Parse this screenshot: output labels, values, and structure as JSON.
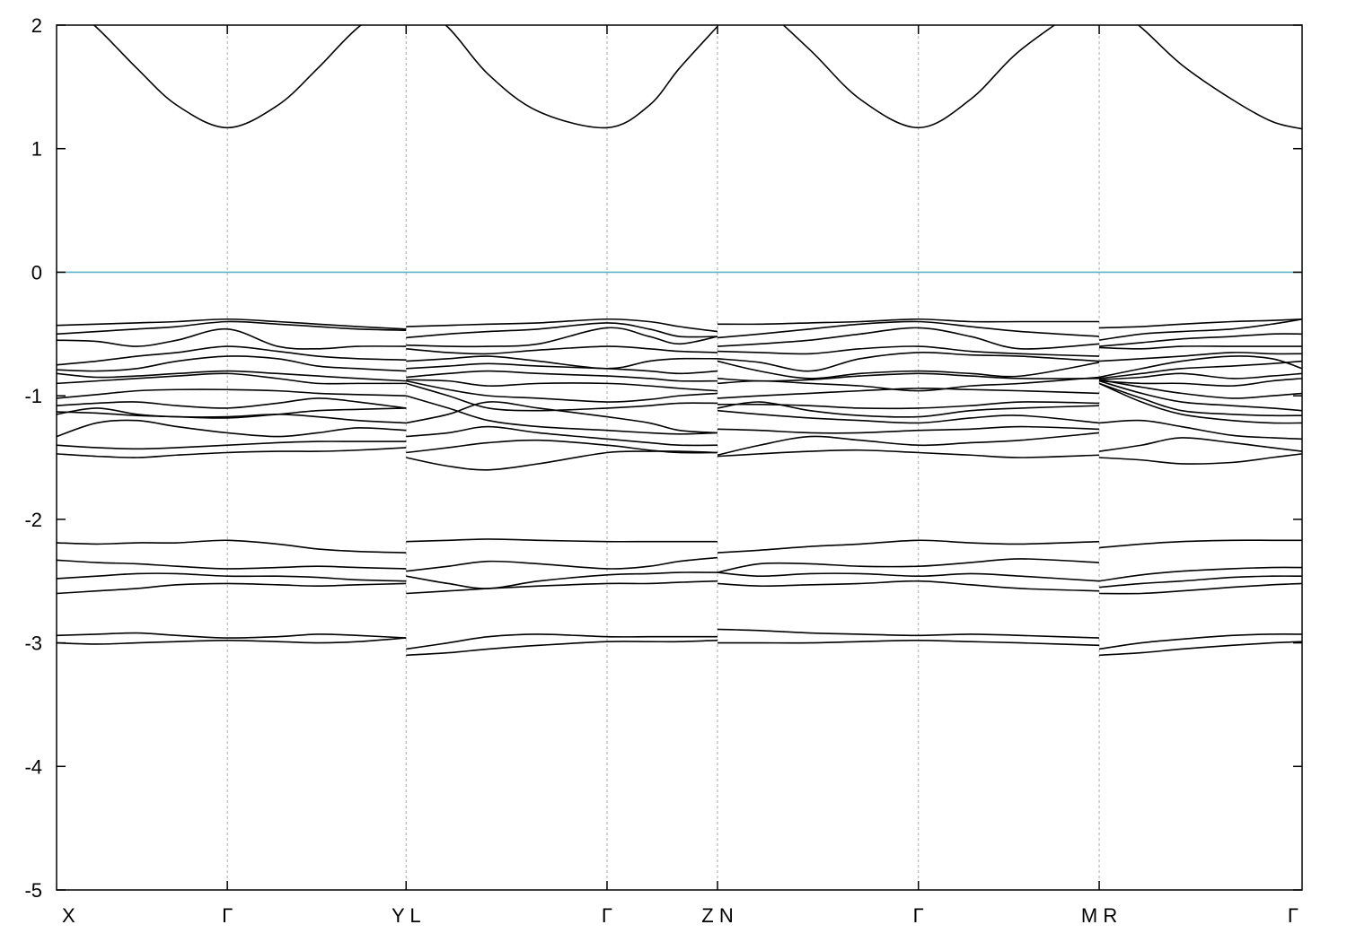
{
  "chart_data": {
    "type": "line",
    "title": "",
    "xlabel": "",
    "ylabel": "",
    "ylim": [
      -5,
      2
    ],
    "yticks": [
      2,
      1,
      0,
      -1,
      -2,
      -3,
      -4,
      -5
    ],
    "xlim": [
      0,
      6.2
    ],
    "kpoints": [
      {
        "label": "X",
        "x": 0.0
      },
      {
        "label": "Γ",
        "x": 0.85
      },
      {
        "label": "Y L",
        "x": 1.74
      },
      {
        "label": "Γ",
        "x": 2.74
      },
      {
        "label": "Z N",
        "x": 3.29
      },
      {
        "label": "Γ",
        "x": 4.29
      },
      {
        "label": "M R",
        "x": 5.19
      },
      {
        "label": "Γ",
        "x": 6.2
      }
    ],
    "fermi_level": 0,
    "fermi_color": "#5ab4c8",
    "line_color": "#000000",
    "grid_color": "#aaaaaa",
    "segments": [
      {
        "x": [
          0.0,
          0.2,
          0.4,
          0.6,
          0.85,
          1.1,
          1.3,
          1.5,
          1.74
        ],
        "bands": [
          [
            2.25,
            1.98,
            1.65,
            1.35,
            1.17,
            1.35,
            1.65,
            1.98,
            2.25
          ],
          [
            -0.43,
            -0.42,
            -0.41,
            -0.4,
            -0.38,
            -0.4,
            -0.42,
            -0.44,
            -0.46
          ],
          [
            -0.5,
            -0.48,
            -0.46,
            -0.44,
            -0.4,
            -0.42,
            -0.44,
            -0.46,
            -0.47
          ],
          [
            -0.55,
            -0.56,
            -0.6,
            -0.55,
            -0.46,
            -0.6,
            -0.62,
            -0.6,
            -0.6
          ],
          [
            -0.75,
            -0.72,
            -0.68,
            -0.65,
            -0.6,
            -0.64,
            -0.68,
            -0.7,
            -0.71
          ],
          [
            -0.79,
            -0.8,
            -0.78,
            -0.72,
            -0.68,
            -0.7,
            -0.76,
            -0.78,
            -0.8
          ],
          [
            -0.82,
            -0.85,
            -0.84,
            -0.82,
            -0.8,
            -0.82,
            -0.84,
            -0.86,
            -0.88
          ],
          [
            -0.9,
            -0.88,
            -0.86,
            -0.84,
            -0.82,
            -0.86,
            -0.9,
            -0.9,
            -0.9
          ],
          [
            -1.02,
            -0.99,
            -0.96,
            -0.95,
            -0.95,
            -0.96,
            -0.98,
            -0.99,
            -1.0
          ],
          [
            -1.08,
            -1.06,
            -1.05,
            -1.08,
            -1.1,
            -1.06,
            -1.02,
            -1.05,
            -1.1
          ],
          [
            -1.13,
            -1.14,
            -1.16,
            -1.17,
            -1.18,
            -1.15,
            -1.12,
            -1.11,
            -1.1
          ],
          [
            -1.15,
            -1.1,
            -1.15,
            -1.17,
            -1.17,
            -1.15,
            -1.17,
            -1.2,
            -1.22
          ],
          [
            -1.33,
            -1.22,
            -1.2,
            -1.25,
            -1.3,
            -1.33,
            -1.3,
            -1.26,
            -1.28
          ],
          [
            -1.4,
            -1.42,
            -1.43,
            -1.42,
            -1.4,
            -1.38,
            -1.37,
            -1.37,
            -1.37
          ],
          [
            -1.47,
            -1.49,
            -1.5,
            -1.48,
            -1.46,
            -1.45,
            -1.45,
            -1.44,
            -1.42
          ],
          [
            -2.19,
            -2.2,
            -2.19,
            -2.19,
            -2.17,
            -2.2,
            -2.24,
            -2.26,
            -2.27
          ],
          [
            -2.33,
            -2.35,
            -2.36,
            -2.38,
            -2.4,
            -2.39,
            -2.38,
            -2.39,
            -2.4
          ],
          [
            -2.48,
            -2.46,
            -2.44,
            -2.44,
            -2.46,
            -2.46,
            -2.47,
            -2.49,
            -2.5
          ],
          [
            -2.6,
            -2.58,
            -2.56,
            -2.53,
            -2.52,
            -2.53,
            -2.54,
            -2.53,
            -2.52
          ],
          [
            -2.94,
            -2.93,
            -2.92,
            -2.94,
            -2.96,
            -2.95,
            -2.93,
            -2.94,
            -2.96
          ],
          [
            -3.0,
            -3.01,
            -3.0,
            -2.99,
            -2.98,
            -2.99,
            -3.0,
            -2.99,
            -2.96
          ]
        ]
      },
      {
        "x": [
          1.74,
          1.95,
          2.15,
          2.4,
          2.74,
          2.95,
          3.1,
          3.29
        ],
        "bands": [
          [
            2.25,
            1.98,
            1.6,
            1.3,
            1.17,
            1.35,
            1.65,
            1.99
          ],
          [
            -0.44,
            -0.43,
            -0.42,
            -0.41,
            -0.38,
            -0.4,
            -0.44,
            -0.48
          ],
          [
            -0.53,
            -0.5,
            -0.48,
            -0.46,
            -0.41,
            -0.46,
            -0.52,
            -0.52
          ],
          [
            -0.59,
            -0.6,
            -0.6,
            -0.58,
            -0.45,
            -0.52,
            -0.58,
            -0.52
          ],
          [
            -0.62,
            -0.65,
            -0.66,
            -0.63,
            -0.6,
            -0.62,
            -0.64,
            -0.65
          ],
          [
            -0.72,
            -0.7,
            -0.68,
            -0.72,
            -0.78,
            -0.72,
            -0.7,
            -0.7
          ],
          [
            -0.78,
            -0.76,
            -0.74,
            -0.76,
            -0.78,
            -0.8,
            -0.82,
            -0.8
          ],
          [
            -0.85,
            -0.82,
            -0.8,
            -0.82,
            -0.84,
            -0.86,
            -0.88,
            -0.88
          ],
          [
            -0.87,
            -0.88,
            -0.92,
            -0.9,
            -0.9,
            -0.92,
            -0.94,
            -0.96
          ],
          [
            -0.88,
            -0.95,
            -1.0,
            -1.02,
            -1.05,
            -1.03,
            -1.0,
            -0.98
          ],
          [
            -0.9,
            -1.0,
            -1.1,
            -1.12,
            -1.1,
            -1.08,
            -1.06,
            -1.06
          ],
          [
            -1.22,
            -1.15,
            -1.05,
            -1.1,
            -1.17,
            -1.22,
            -1.28,
            -1.3
          ],
          [
            -1.0,
            -1.1,
            -1.2,
            -1.25,
            -1.28,
            -1.3,
            -1.31,
            -1.3
          ],
          [
            -1.33,
            -1.3,
            -1.25,
            -1.3,
            -1.35,
            -1.38,
            -1.4,
            -1.4
          ],
          [
            -1.46,
            -1.42,
            -1.38,
            -1.36,
            -1.4,
            -1.44,
            -1.46,
            -1.46
          ],
          [
            -1.5,
            -1.57,
            -1.6,
            -1.55,
            -1.46,
            -1.45,
            -1.45,
            -1.46
          ],
          [
            -2.18,
            -2.17,
            -2.16,
            -2.17,
            -2.18,
            -2.18,
            -2.18,
            -2.18
          ],
          [
            -2.42,
            -2.38,
            -2.34,
            -2.36,
            -2.4,
            -2.38,
            -2.34,
            -2.31
          ],
          [
            -2.46,
            -2.52,
            -2.56,
            -2.5,
            -2.45,
            -2.44,
            -2.43,
            -2.43
          ],
          [
            -2.6,
            -2.58,
            -2.56,
            -2.54,
            -2.52,
            -2.52,
            -2.51,
            -2.5
          ],
          [
            -3.05,
            -3.0,
            -2.95,
            -2.93,
            -2.95,
            -2.95,
            -2.95,
            -2.95
          ],
          [
            -3.1,
            -3.08,
            -3.05,
            -3.02,
            -2.99,
            -2.99,
            -2.99,
            -2.98
          ]
        ]
      },
      {
        "x": [
          3.29,
          3.5,
          3.75,
          4.0,
          4.29,
          4.55,
          4.8,
          5.19
        ],
        "bands": [
          [
            2.25,
            2.15,
            1.8,
            1.4,
            1.17,
            1.4,
            1.8,
            2.25
          ],
          [
            -0.42,
            -0.42,
            -0.41,
            -0.4,
            -0.38,
            -0.4,
            -0.4,
            -0.4
          ],
          [
            -0.53,
            -0.5,
            -0.46,
            -0.42,
            -0.4,
            -0.44,
            -0.48,
            -0.52
          ],
          [
            -0.6,
            -0.58,
            -0.55,
            -0.5,
            -0.45,
            -0.52,
            -0.62,
            -0.58
          ],
          [
            -0.64,
            -0.65,
            -0.66,
            -0.62,
            -0.6,
            -0.64,
            -0.66,
            -0.68
          ],
          [
            -0.7,
            -0.73,
            -0.8,
            -0.7,
            -0.65,
            -0.67,
            -0.68,
            -0.72
          ],
          [
            -0.72,
            -0.8,
            -0.86,
            -0.82,
            -0.8,
            -0.82,
            -0.84,
            -0.73
          ],
          [
            -0.86,
            -0.88,
            -0.87,
            -0.84,
            -0.82,
            -0.84,
            -0.86,
            -0.86
          ],
          [
            -0.9,
            -0.88,
            -0.9,
            -0.92,
            -0.96,
            -0.92,
            -0.9,
            -0.85
          ],
          [
            -1.02,
            -1.0,
            -0.98,
            -0.96,
            -0.94,
            -0.95,
            -0.96,
            -0.98
          ],
          [
            -1.07,
            -1.07,
            -1.08,
            -1.1,
            -1.1,
            -1.08,
            -1.05,
            -1.06
          ],
          [
            -1.1,
            -1.05,
            -1.12,
            -1.16,
            -1.17,
            -1.12,
            -1.1,
            -1.08
          ],
          [
            -1.12,
            -1.15,
            -1.18,
            -1.2,
            -1.22,
            -1.18,
            -1.16,
            -1.22
          ],
          [
            -1.27,
            -1.28,
            -1.3,
            -1.3,
            -1.28,
            -1.27,
            -1.25,
            -1.27
          ],
          [
            -1.48,
            -1.4,
            -1.33,
            -1.36,
            -1.4,
            -1.38,
            -1.36,
            -1.3
          ],
          [
            -1.49,
            -1.47,
            -1.45,
            -1.44,
            -1.46,
            -1.48,
            -1.5,
            -1.48
          ],
          [
            -2.27,
            -2.25,
            -2.22,
            -2.2,
            -2.17,
            -2.19,
            -2.2,
            -2.18
          ],
          [
            -2.43,
            -2.36,
            -2.36,
            -2.38,
            -2.38,
            -2.35,
            -2.32,
            -2.35
          ],
          [
            -2.43,
            -2.46,
            -2.44,
            -2.44,
            -2.46,
            -2.44,
            -2.46,
            -2.5
          ],
          [
            -2.52,
            -2.54,
            -2.53,
            -2.52,
            -2.5,
            -2.53,
            -2.56,
            -2.58
          ],
          [
            -2.89,
            -2.9,
            -2.92,
            -2.93,
            -2.94,
            -2.93,
            -2.94,
            -2.96
          ],
          [
            -3.0,
            -3.0,
            -3.0,
            -2.99,
            -2.98,
            -2.99,
            -3.0,
            -3.02
          ]
        ]
      },
      {
        "x": [
          5.19,
          5.4,
          5.6,
          5.85,
          6.05,
          6.2
        ],
        "bands": [
          [
            2.25,
            1.98,
            1.68,
            1.4,
            1.22,
            1.16
          ],
          [
            -0.45,
            -0.44,
            -0.42,
            -0.4,
            -0.39,
            -0.38
          ],
          [
            -0.55,
            -0.5,
            -0.48,
            -0.46,
            -0.42,
            -0.38
          ],
          [
            -0.6,
            -0.57,
            -0.54,
            -0.52,
            -0.5,
            -0.5
          ],
          [
            -0.61,
            -0.62,
            -0.6,
            -0.6,
            -0.6,
            -0.6
          ],
          [
            -0.72,
            -0.7,
            -0.68,
            -0.65,
            -0.66,
            -0.66
          ],
          [
            -0.85,
            -0.78,
            -0.72,
            -0.68,
            -0.7,
            -0.78
          ],
          [
            -0.86,
            -0.82,
            -0.78,
            -0.76,
            -0.74,
            -0.72
          ],
          [
            -0.87,
            -0.85,
            -0.82,
            -0.86,
            -0.84,
            -0.82
          ],
          [
            -0.88,
            -0.9,
            -0.9,
            -0.92,
            -0.88,
            -0.86
          ],
          [
            -0.87,
            -0.93,
            -0.98,
            -1.02,
            -1.0,
            -0.98
          ],
          [
            -0.88,
            -0.98,
            -1.05,
            -1.08,
            -1.1,
            -1.12
          ],
          [
            -0.9,
            -1.02,
            -1.12,
            -1.15,
            -1.16,
            -1.16
          ],
          [
            -0.9,
            -1.05,
            -1.15,
            -1.2,
            -1.22,
            -1.22
          ],
          [
            -1.22,
            -1.2,
            -1.25,
            -1.32,
            -1.34,
            -1.35
          ],
          [
            -1.45,
            -1.4,
            -1.34,
            -1.38,
            -1.42,
            -1.45
          ],
          [
            -1.5,
            -1.52,
            -1.55,
            -1.54,
            -1.5,
            -1.47
          ],
          [
            -2.23,
            -2.2,
            -2.18,
            -2.17,
            -2.17,
            -2.17
          ],
          [
            -2.5,
            -2.45,
            -2.42,
            -2.4,
            -2.39,
            -2.39
          ],
          [
            -2.55,
            -2.52,
            -2.5,
            -2.47,
            -2.46,
            -2.46
          ],
          [
            -2.6,
            -2.6,
            -2.58,
            -2.55,
            -2.53,
            -2.52
          ],
          [
            -3.05,
            -3.0,
            -2.97,
            -2.94,
            -2.93,
            -2.93
          ],
          [
            -3.1,
            -3.08,
            -3.05,
            -3.02,
            -3.0,
            -2.99
          ]
        ]
      }
    ]
  }
}
